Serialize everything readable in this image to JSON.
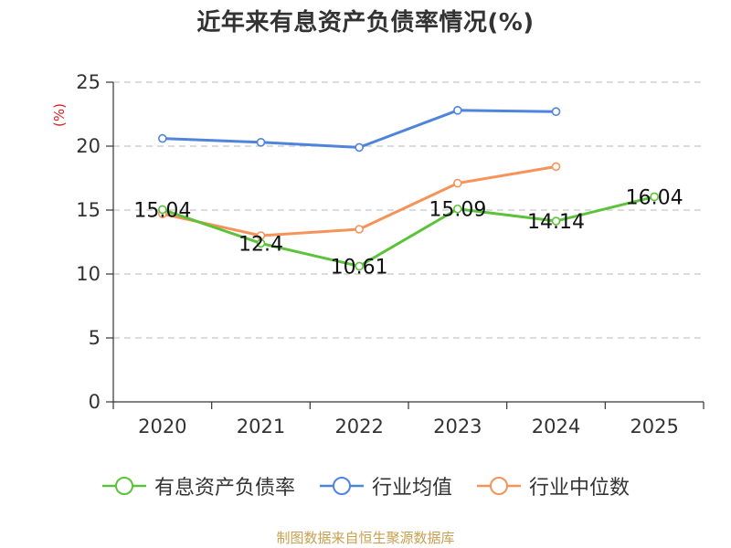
{
  "title": "近年来有息资产负债率情况(%)",
  "source_note": "制图数据来自恒生聚源数据库",
  "chart_data": {
    "type": "line",
    "title": "近年来有息资产负债率情况(%)",
    "xlabel": "",
    "ylabel": "(%)",
    "categories": [
      "2020",
      "2021",
      "2022",
      "2023",
      "2024",
      "2025"
    ],
    "ylim": [
      0,
      25
    ],
    "yticks": [
      0,
      5,
      10,
      15,
      20,
      25
    ],
    "grid": true,
    "legend_position": "bottom",
    "series": [
      {
        "name": "有息资产负债率",
        "color": "#5cc23a",
        "values": [
          15.04,
          12.4,
          10.61,
          15.09,
          14.14,
          16.04
        ],
        "labels": [
          "15.04",
          "12.4",
          "10.61",
          "15.09",
          "14.14",
          "16.04"
        ]
      },
      {
        "name": "行业均值",
        "color": "#4e84dc",
        "values": [
          20.6,
          20.3,
          19.9,
          22.8,
          22.7,
          null
        ]
      },
      {
        "name": "行业中位数",
        "color": "#f7925a",
        "values": [
          14.7,
          13.0,
          13.5,
          17.1,
          18.4,
          null
        ]
      }
    ]
  }
}
